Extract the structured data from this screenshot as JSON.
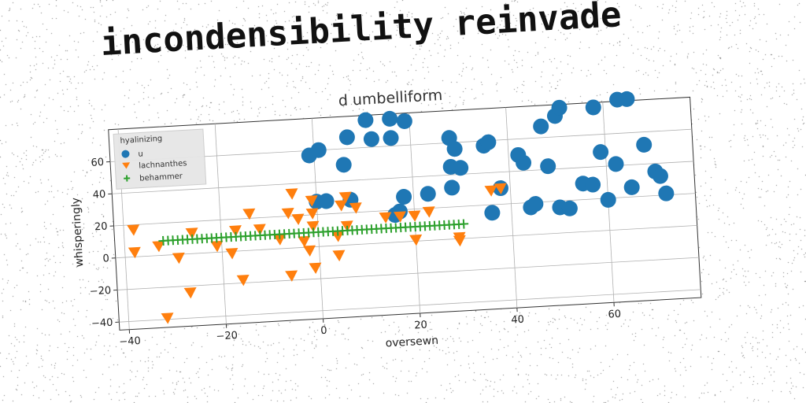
{
  "headline": "incondensibility reinvade",
  "colors": {
    "u": "#1f77b4",
    "lachnanthes": "#ff7f0e",
    "behammer": "#2ca02c"
  },
  "chart_data": {
    "type": "scatter",
    "title": "d umbelliform",
    "xlabel": "oversewn",
    "ylabel": "whisperingly",
    "xlim": [
      -42,
      78
    ],
    "ylim": [
      -45,
      80
    ],
    "xticks": [
      -40,
      -20,
      0,
      20,
      40,
      60
    ],
    "yticks": [
      -40,
      -20,
      0,
      20,
      40,
      60
    ],
    "grid": true,
    "legend": {
      "title": "hyalinizing",
      "position": "upper-left"
    },
    "series": [
      {
        "name": "u",
        "marker": "circle",
        "points": [
          [
            -1,
            57
          ],
          [
            1,
            60
          ],
          [
            6,
            50
          ],
          [
            7,
            67
          ],
          [
            11,
            77
          ],
          [
            12,
            65
          ],
          [
            16,
            77
          ],
          [
            16,
            65
          ],
          [
            19,
            75
          ],
          [
            0,
            28
          ],
          [
            2,
            28
          ],
          [
            7,
            28
          ],
          [
            16,
            17
          ],
          [
            17,
            19
          ],
          [
            18,
            28
          ],
          [
            23,
            29
          ],
          [
            28,
            63
          ],
          [
            29,
            56
          ],
          [
            28,
            45
          ],
          [
            30,
            44
          ],
          [
            28,
            32
          ],
          [
            35,
            57
          ],
          [
            36,
            59
          ],
          [
            36,
            15
          ],
          [
            38,
            30
          ],
          [
            42,
            50
          ],
          [
            43,
            45
          ],
          [
            44,
            17
          ],
          [
            45,
            19
          ],
          [
            47,
            67
          ],
          [
            48,
            42
          ],
          [
            50,
            73
          ],
          [
            51,
            78
          ],
          [
            50,
            16
          ],
          [
            52,
            15
          ],
          [
            55,
            30
          ],
          [
            57,
            29
          ],
          [
            58,
            77
          ],
          [
            59,
            49
          ],
          [
            60,
            19
          ],
          [
            62,
            41
          ],
          [
            63,
            81
          ],
          [
            65,
            81
          ],
          [
            65,
            26
          ],
          [
            68,
            52
          ],
          [
            70,
            35
          ],
          [
            71,
            32
          ],
          [
            72,
            21
          ]
        ]
      },
      {
        "name": "lachnanthes",
        "marker": "triangle_down",
        "points": [
          [
            -38,
            17
          ],
          [
            -38,
            3
          ],
          [
            -33,
            6
          ],
          [
            -32,
            -39
          ],
          [
            -29,
            -2
          ],
          [
            -27,
            -24
          ],
          [
            -26,
            13
          ],
          [
            -21,
            4
          ],
          [
            -18,
            -1
          ],
          [
            -17,
            13
          ],
          [
            -16,
            -18
          ],
          [
            -14,
            23
          ],
          [
            -12,
            13
          ],
          [
            -8,
            6
          ],
          [
            -6,
            -17
          ],
          [
            -6,
            22
          ],
          [
            -5,
            34
          ],
          [
            -4,
            18
          ],
          [
            -3,
            4
          ],
          [
            -2,
            -2
          ],
          [
            -1,
            29
          ],
          [
            -1,
            13
          ],
          [
            -1,
            -13
          ],
          [
            -1,
            21
          ],
          [
            4,
            -6
          ],
          [
            4,
            6
          ],
          [
            5,
            25
          ],
          [
            6,
            30
          ],
          [
            6,
            12
          ],
          [
            8,
            23
          ],
          [
            14,
            16
          ],
          [
            17,
            16
          ],
          [
            20,
            1
          ],
          [
            20,
            16
          ],
          [
            23,
            18
          ],
          [
            29,
            -1
          ],
          [
            29,
            1
          ],
          [
            36,
            29
          ],
          [
            38,
            30
          ]
        ]
      },
      {
        "name": "behammer",
        "marker": "plus",
        "x_range": [
          -32,
          30
        ],
        "y": 9
      }
    ]
  }
}
